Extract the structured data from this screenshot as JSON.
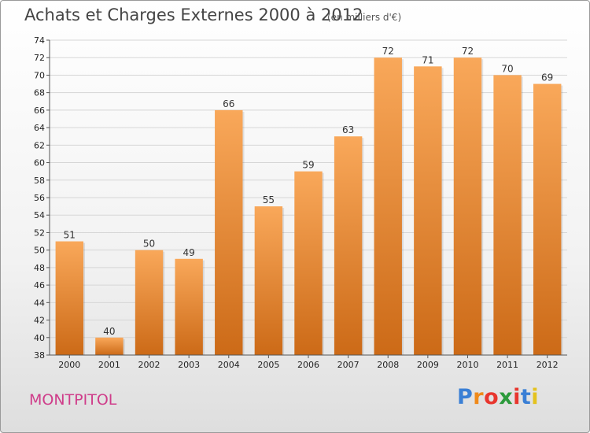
{
  "page": {
    "title": "Achats et Charges Externes 2000 à 2012",
    "subtitle": "(en milliers d'€)",
    "location": "MONTPITOL",
    "brand": {
      "letters": [
        "P",
        "r",
        "o",
        "x",
        "i",
        "t",
        "i"
      ],
      "colors": [
        "#3a7fd5",
        "#ef8a1a",
        "#e8362e",
        "#2c9a3c",
        "#e8362e",
        "#3a7fd5",
        "#e4c21f"
      ]
    }
  },
  "chart_data": {
    "type": "bar",
    "categories": [
      "2000",
      "2001",
      "2002",
      "2003",
      "2004",
      "2005",
      "2006",
      "2007",
      "2008",
      "2009",
      "2010",
      "2011",
      "2012"
    ],
    "values": [
      51,
      40,
      50,
      49,
      66,
      55,
      59,
      63,
      72,
      71,
      72,
      70,
      69
    ],
    "data_labels": [
      "51",
      "40",
      "50",
      "49",
      "66",
      "55",
      "59",
      "63",
      "72",
      "71",
      "72",
      "70",
      "69"
    ],
    "ylim": [
      38,
      74
    ],
    "yticks": [
      "38",
      "40",
      "42",
      "44",
      "46",
      "48",
      "50",
      "52",
      "54",
      "56",
      "58",
      "60",
      "62",
      "64",
      "66",
      "68",
      "70",
      "72",
      "74"
    ],
    "grid": true,
    "colors": {
      "bar_top": "#f9a85a",
      "bar_bottom": "#cc6a17",
      "grid": "#d6d6d6"
    }
  }
}
